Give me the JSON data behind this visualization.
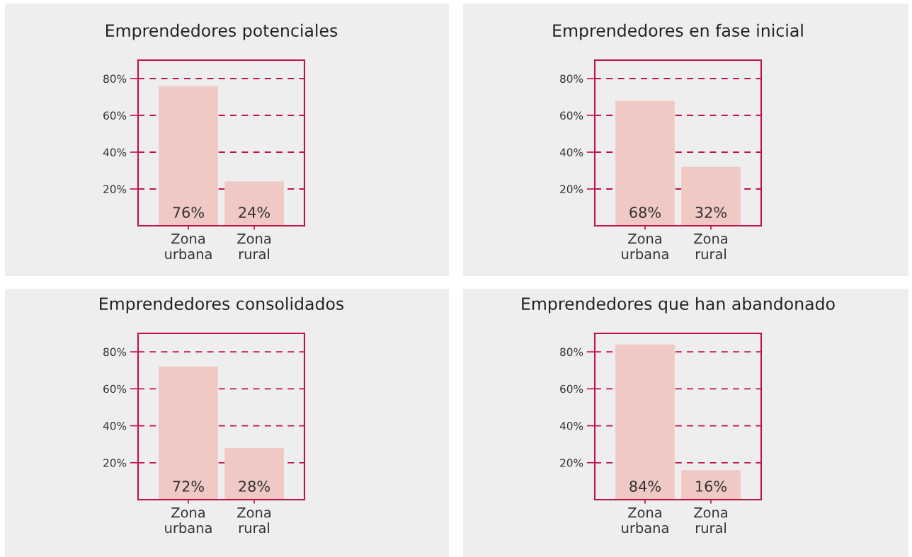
{
  "chart_data": [
    {
      "type": "bar",
      "title": "Emprendedores potenciales",
      "categories": [
        "Zona\nurbana",
        "Zona\nrural"
      ],
      "values": [
        76,
        24
      ],
      "value_labels": [
        "76%",
        "24%"
      ],
      "color": "#f0c9c4",
      "ylim": [
        0,
        90
      ],
      "yticks": [
        {
          "value": 20,
          "label": "20%"
        },
        {
          "value": 40,
          "label": "40%"
        },
        {
          "value": 60,
          "label": "60%"
        },
        {
          "value": 80,
          "label": "80%"
        }
      ],
      "grid": "y"
    },
    {
      "type": "bar",
      "title": "Emprendedores en fase inicial",
      "categories": [
        "Zona\nurbana",
        "Zona\nrural"
      ],
      "values": [
        68,
        32
      ],
      "value_labels": [
        "68%",
        "32%"
      ],
      "color": "#f0c9c4",
      "ylim": [
        0,
        90
      ],
      "yticks": [
        {
          "value": 20,
          "label": "20%"
        },
        {
          "value": 40,
          "label": "40%"
        },
        {
          "value": 60,
          "label": "60%"
        },
        {
          "value": 80,
          "label": "80%"
        }
      ],
      "grid": "y"
    },
    {
      "type": "bar",
      "title": "Emprendedores consolidados",
      "categories": [
        "Zona\nurbana",
        "Zona\nrural"
      ],
      "values": [
        72,
        28
      ],
      "value_labels": [
        "72%",
        "28%"
      ],
      "color": "#f0c9c4",
      "ylim": [
        0,
        90
      ],
      "yticks": [
        {
          "value": 20,
          "label": "20%"
        },
        {
          "value": 40,
          "label": "40%"
        },
        {
          "value": 60,
          "label": "60%"
        },
        {
          "value": 80,
          "label": "80%"
        }
      ],
      "grid": "y"
    },
    {
      "type": "bar",
      "title": "Emprendedores que han abandonado",
      "categories": [
        "Zona\nurbana",
        "Zona\nrural"
      ],
      "values": [
        84,
        16
      ],
      "value_labels": [
        "84%",
        "16%"
      ],
      "color": "#f0c9c4",
      "ylim": [
        0,
        90
      ],
      "yticks": [
        {
          "value": 20,
          "label": "20%"
        },
        {
          "value": 40,
          "label": "40%"
        },
        {
          "value": 60,
          "label": "60%"
        },
        {
          "value": 80,
          "label": "80%"
        }
      ],
      "grid": "y"
    }
  ]
}
